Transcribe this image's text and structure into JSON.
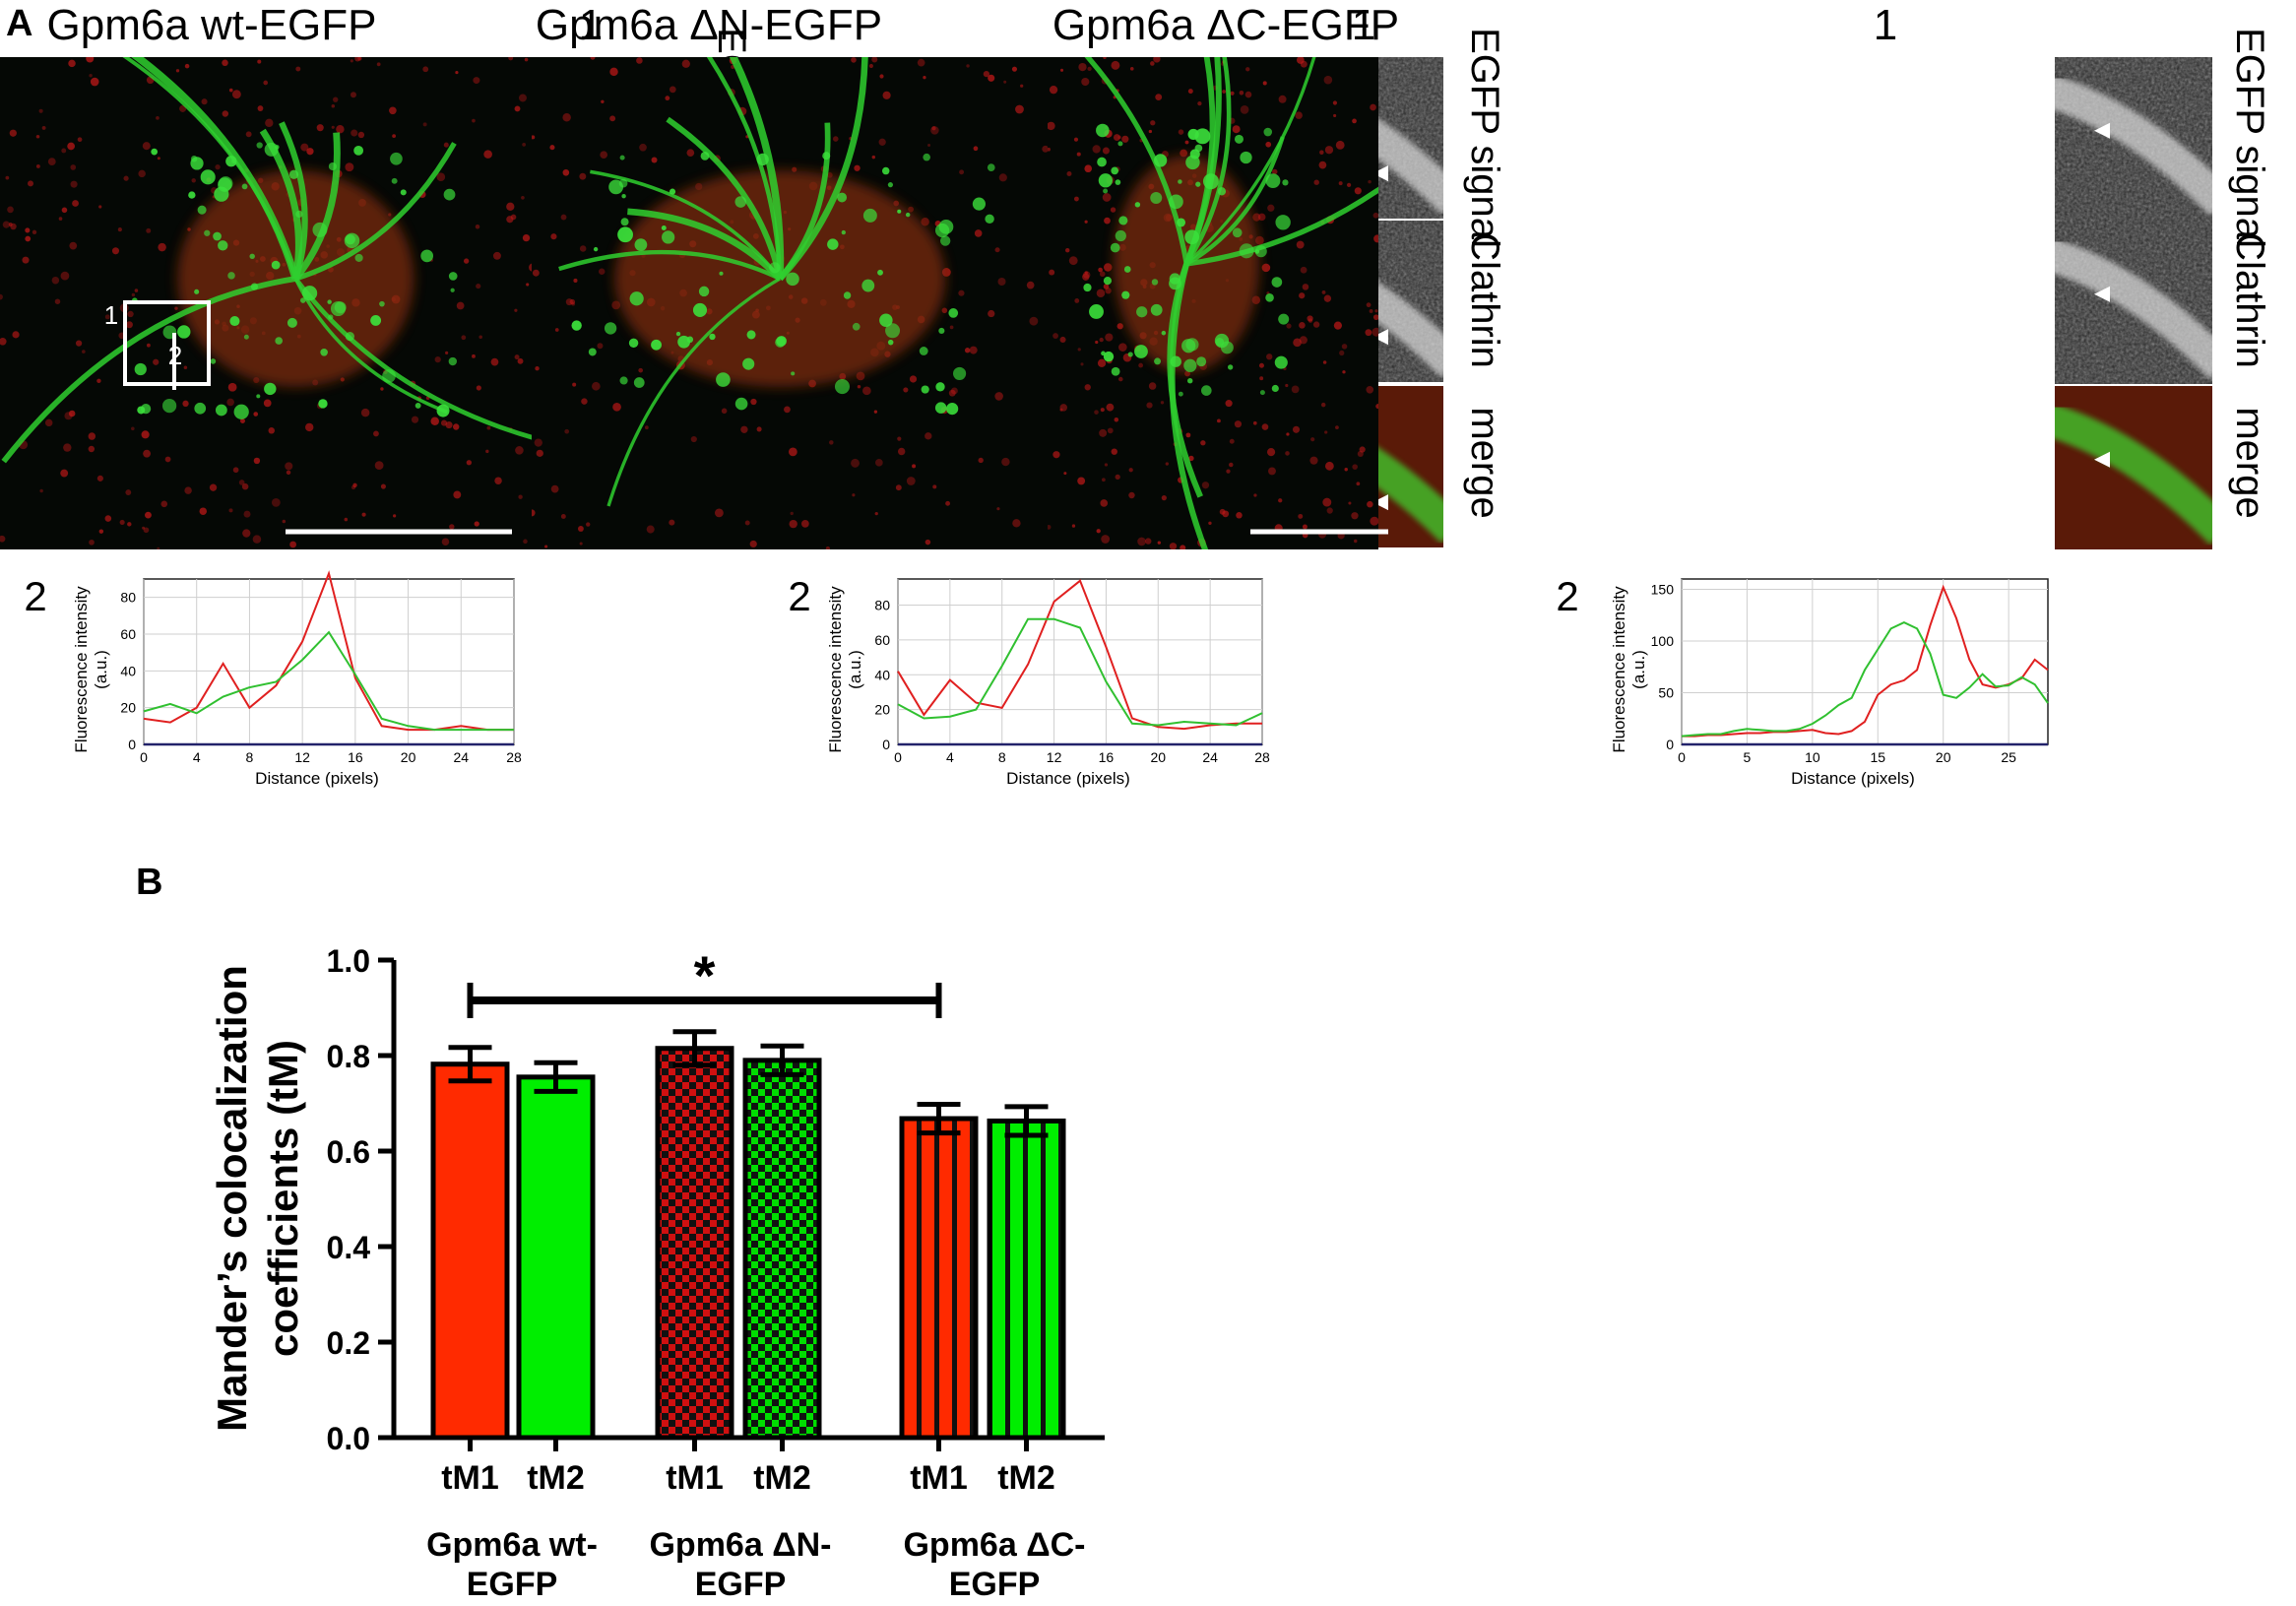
{
  "figure": {
    "panel_a_label": "A",
    "panel_b_label": "B",
    "colors": {
      "red_channel": "#e02020",
      "green_channel": "#30c030",
      "bar_red": "#ff2a00",
      "bar_green": "#00ee00",
      "checker_red": "#d01010",
      "checker_green": "#00dd00"
    },
    "micrographs": [
      {
        "title": "Gpm6a wt-EGFP",
        "inset_number": "1",
        "roi_label_1": "1",
        "roi_label_2": "2",
        "side_labels": [
          "EGFP signal",
          "Clathrin",
          "merge"
        ],
        "profile_number": "2"
      },
      {
        "title": "Gpm6a ΔN-EGFP",
        "inset_number": "1",
        "roi_label_1": "1",
        "roi_label_2": "2",
        "side_labels": [
          "EGFP signal",
          "Clathrin",
          "merge"
        ],
        "profile_number": "2"
      },
      {
        "title": "Gpm6a ΔC-EGFP",
        "inset_number": "1",
        "roi_label_1": "1",
        "roi_label_2": "2",
        "side_labels": [
          "EGFP signal",
          "Clathrin",
          "merge"
        ],
        "profile_number": "2"
      }
    ]
  },
  "chart_data": [
    {
      "type": "line",
      "xlabel": "Distance (pixels)",
      "ylabel": "Fluorescence intensity (a.u.)",
      "xlim": [
        0,
        28
      ],
      "ylim": [
        0,
        90
      ],
      "xticks": [
        0,
        4,
        8,
        12,
        16,
        20,
        24,
        28
      ],
      "yticks": [
        0,
        20,
        40,
        60,
        80
      ],
      "grid": true,
      "series": [
        {
          "color": "red",
          "x": [
            0,
            2,
            4,
            6,
            8,
            10,
            12,
            14,
            16,
            18,
            20,
            22,
            24,
            26,
            28
          ],
          "y": [
            14,
            12,
            20,
            44,
            20,
            32,
            56,
            93,
            36,
            10,
            8,
            8,
            10,
            8,
            8
          ]
        },
        {
          "color": "green",
          "x": [
            0,
            2,
            4,
            6,
            8,
            10,
            12,
            14,
            16,
            18,
            20,
            22,
            24,
            26,
            28
          ],
          "y": [
            18,
            22,
            17,
            26,
            31,
            34,
            46,
            61,
            38,
            14,
            10,
            8,
            8,
            8,
            8
          ]
        }
      ]
    },
    {
      "type": "line",
      "xlabel": "Distance (pixels)",
      "ylabel": "Fluorescence intensity (a.u.)",
      "xlim": [
        0,
        28
      ],
      "ylim": [
        0,
        95
      ],
      "xticks": [
        0,
        4,
        8,
        12,
        16,
        20,
        24,
        28
      ],
      "yticks": [
        0,
        20,
        40,
        60,
        80
      ],
      "grid": true,
      "series": [
        {
          "color": "red",
          "x": [
            0,
            2,
            4,
            6,
            8,
            10,
            12,
            14,
            16,
            18,
            20,
            22,
            24,
            26,
            28
          ],
          "y": [
            42,
            17,
            37,
            24,
            21,
            46,
            82,
            94,
            56,
            15,
            10,
            9,
            11,
            12,
            12
          ]
        },
        {
          "color": "green",
          "x": [
            0,
            2,
            4,
            6,
            8,
            10,
            12,
            14,
            16,
            18,
            20,
            22,
            24,
            26,
            28
          ],
          "y": [
            23,
            15,
            16,
            20,
            45,
            72,
            72,
            67,
            36,
            12,
            11,
            13,
            12,
            11,
            18
          ]
        }
      ]
    },
    {
      "type": "line",
      "xlabel": "Distance (pixels)",
      "ylabel": "Fluorescence intensity (a.u.)",
      "xlim": [
        0,
        28
      ],
      "ylim": [
        0,
        160
      ],
      "xticks": [
        0,
        5,
        10,
        15,
        20,
        25
      ],
      "yticks": [
        0,
        50,
        100,
        150
      ],
      "grid": true,
      "series": [
        {
          "color": "red",
          "x": [
            0,
            1,
            2,
            3,
            4,
            5,
            6,
            7,
            8,
            9,
            10,
            11,
            12,
            13,
            14,
            15,
            16,
            17,
            18,
            19,
            20,
            21,
            22,
            23,
            24,
            25,
            26,
            27,
            28
          ],
          "y": [
            8,
            8,
            9,
            9,
            10,
            11,
            11,
            12,
            12,
            13,
            14,
            11,
            10,
            13,
            22,
            48,
            58,
            62,
            72,
            115,
            152,
            122,
            82,
            58,
            55,
            58,
            64,
            82,
            72
          ]
        },
        {
          "color": "green",
          "x": [
            0,
            1,
            2,
            3,
            4,
            5,
            6,
            7,
            8,
            9,
            10,
            11,
            12,
            13,
            14,
            15,
            16,
            17,
            18,
            19,
            20,
            21,
            22,
            23,
            24,
            25,
            26,
            27,
            28
          ],
          "y": [
            8,
            9,
            10,
            10,
            13,
            15,
            14,
            13,
            13,
            15,
            20,
            28,
            38,
            45,
            72,
            92,
            112,
            118,
            112,
            88,
            48,
            45,
            55,
            68,
            56,
            57,
            65,
            58,
            40
          ]
        }
      ]
    },
    {
      "type": "bar",
      "ylabel": "Mander’s colocalization coefficients (tM)",
      "ylim": [
        0.0,
        1.0
      ],
      "yticks": [
        "0.0",
        "0.2",
        "0.4",
        "0.6",
        "0.8",
        "1.0"
      ],
      "categories": [
        "tM1",
        "tM2",
        "tM1",
        "tM2",
        "tM1",
        "tM2"
      ],
      "groups": [
        "Gpm6a wt-EGFP",
        "Gpm6a ΔN-EGFP",
        "Gpm6a ΔC-EGFP"
      ],
      "values": [
        0.782,
        0.755,
        0.815,
        0.79,
        0.668,
        0.663
      ],
      "errors": [
        0.035,
        0.03,
        0.035,
        0.03,
        0.03,
        0.03
      ],
      "significance": {
        "from_bar": 0,
        "to_bar": 4,
        "label": "*"
      }
    }
  ]
}
